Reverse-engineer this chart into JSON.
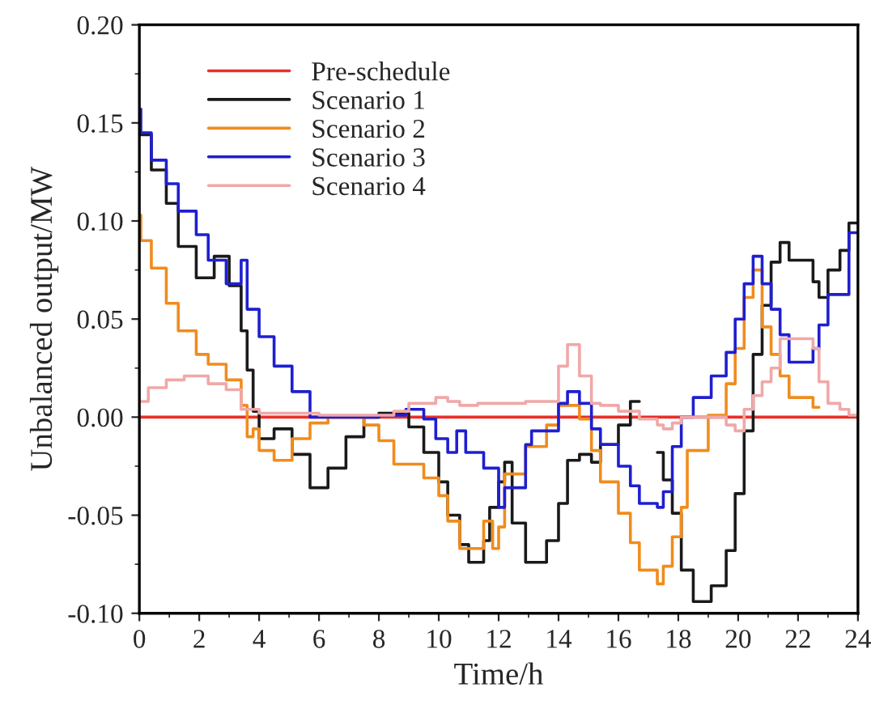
{
  "chart_data": {
    "type": "step",
    "xlabel": "Time/h",
    "ylabel": "Unbalanced output/MW",
    "xlim": [
      0,
      24
    ],
    "ylim": [
      -0.1,
      0.2
    ],
    "xticks": [
      0,
      2,
      4,
      6,
      8,
      10,
      12,
      14,
      16,
      18,
      20,
      22,
      24
    ],
    "yticks": [
      {
        "value": -0.1,
        "label": "-0.10"
      },
      {
        "value": -0.05,
        "label": "-0.05"
      },
      {
        "value": 0,
        "label": "0.00"
      },
      {
        "value": 0.05,
        "label": "0.05"
      },
      {
        "value": 0.1,
        "label": "0.10"
      },
      {
        "value": 0.15,
        "label": "0.15"
      },
      {
        "value": 0.2,
        "label": "0.20"
      }
    ],
    "grid": false,
    "legend": "top left",
    "line_style": "solid",
    "marker": "none",
    "series": [
      {
        "name": "Pre-schedule",
        "color": "#e8302a",
        "x": [
          0,
          24
        ],
        "values": [
          0,
          0
        ]
      },
      {
        "name": "Scenario 1",
        "color": "#1a1a1a",
        "x": [
          0,
          0.4,
          0.9,
          1.3,
          1.9,
          2.5,
          3.0,
          3.4,
          3.6,
          3.8,
          4.0,
          4.5,
          5.1,
          5.7,
          6.3,
          6.9,
          7.5,
          8.0,
          9.0,
          9.5,
          10.0,
          10.3,
          10.7,
          11.0,
          11.5,
          11.7,
          12.0,
          12.2,
          12.45,
          12.9,
          13.6,
          14.0,
          14.3,
          14.7,
          15.1,
          15.4,
          16.0,
          16.4,
          16.7,
          17.3,
          17.5,
          17.8,
          18.1,
          18.5,
          19.1,
          19.6,
          19.9,
          20.2,
          20.5,
          20.8,
          21.1,
          21.4,
          21.7,
          22.5,
          22.7,
          23.0,
          23.4,
          23.7,
          24
        ],
        "values": [
          0.144,
          0.126,
          0.109,
          0.087,
          0.071,
          0.082,
          0.067,
          0.044,
          0.024,
          0.003,
          -0.011,
          -0.006,
          -0.019,
          -0.036,
          -0.026,
          -0.01,
          0.0,
          0.002,
          -0.005,
          -0.018,
          -0.033,
          -0.05,
          -0.065,
          -0.074,
          -0.063,
          -0.046,
          -0.033,
          -0.023,
          -0.054,
          -0.074,
          -0.063,
          -0.044,
          -0.022,
          -0.019,
          -0.023,
          -0.014,
          -0.004,
          0.008,
          null,
          -0.018,
          -0.032,
          -0.049,
          -0.078,
          -0.094,
          -0.086,
          -0.068,
          -0.039,
          -0.007,
          0.032,
          0.057,
          0.079,
          0.089,
          0.08,
          0.069,
          0.061,
          0.075,
          0.085,
          0.099,
          0.099
        ]
      },
      {
        "name": "Scenario 2",
        "color": "#f08c1e",
        "x": [
          0,
          0.05,
          0.4,
          0.9,
          1.3,
          1.9,
          2.3,
          2.9,
          3.4,
          3.6,
          3.8,
          4.0,
          4.5,
          5.1,
          5.7,
          6.3,
          7.5,
          8.0,
          8.5,
          9.5,
          10.0,
          10.3,
          10.7,
          11.5,
          11.8,
          12.0,
          12.2,
          12.9,
          13.6,
          14.0,
          14.7,
          15.1,
          15.4,
          16.0,
          16.4,
          16.7,
          17.3,
          17.5,
          17.8,
          18.1,
          18.3,
          19.0,
          19.6,
          19.9,
          20.2,
          20.5,
          20.8,
          21.1,
          21.4,
          21.7,
          22.5,
          22.7
        ],
        "values": [
          0.103,
          0.09,
          0.076,
          0.058,
          0.044,
          0.032,
          0.027,
          0.019,
          0.006,
          -0.01,
          -0.006,
          -0.017,
          -0.022,
          -0.011,
          -0.003,
          0.0,
          -0.004,
          -0.012,
          -0.024,
          -0.031,
          -0.04,
          -0.053,
          -0.067,
          -0.053,
          -0.067,
          -0.056,
          -0.029,
          -0.015,
          -0.004,
          0.006,
          -0.001,
          -0.017,
          -0.033,
          -0.049,
          -0.064,
          -0.078,
          -0.085,
          -0.076,
          -0.061,
          -0.046,
          -0.017,
          0.001,
          0.017,
          0.035,
          0.061,
          0.075,
          0.046,
          0.032,
          0.021,
          0.01,
          0.005,
          0.005
        ]
      },
      {
        "name": "Scenario 3",
        "color": "#1f1fd0",
        "x": [
          0,
          0.05,
          0.4,
          0.9,
          1.3,
          1.9,
          2.3,
          2.9,
          3.4,
          3.6,
          4.0,
          4.5,
          5.1,
          5.7,
          8.0,
          8.9,
          9.5,
          9.9,
          10.3,
          10.6,
          10.9,
          11.5,
          12.0,
          12.2,
          12.9,
          13.1,
          14.0,
          14.3,
          14.7,
          15.1,
          15.4,
          16.0,
          16.4,
          16.7,
          17.3,
          17.5,
          17.8,
          18.1,
          18.5,
          19.1,
          19.6,
          19.9,
          20.2,
          20.5,
          20.8,
          21.1,
          21.4,
          21.7,
          22.5,
          22.7,
          23.0,
          23.7,
          24
        ],
        "values": [
          0.157,
          0.145,
          0.131,
          0.119,
          0.105,
          0.093,
          0.08,
          0.068,
          0.08,
          0.055,
          0.041,
          0.026,
          0.013,
          0.0,
          0.001,
          0.004,
          -0.001,
          -0.011,
          -0.018,
          -0.007,
          -0.018,
          -0.026,
          -0.046,
          -0.036,
          -0.014,
          -0.007,
          0.007,
          0.013,
          0.007,
          -0.006,
          -0.014,
          -0.025,
          -0.035,
          -0.044,
          -0.046,
          -0.038,
          -0.015,
          0.0,
          0.01,
          0.021,
          0.033,
          0.05,
          0.068,
          0.082,
          0.068,
          0.055,
          0.042,
          0.028,
          0.035,
          0.047,
          0.0625,
          0.094,
          0.094
        ]
      },
      {
        "name": "Scenario 4",
        "color": "#f0a8a8",
        "x": [
          0,
          0.3,
          0.9,
          1.5,
          2.3,
          2.9,
          3.4,
          4.0,
          6.0,
          8.5,
          9.0,
          9.9,
          10.3,
          10.7,
          11.3,
          12.0,
          12.9,
          14.0,
          14.3,
          14.7,
          15.1,
          15.4,
          16.0,
          16.7,
          17.3,
          17.5,
          17.8,
          18.1,
          19.6,
          19.9,
          20.2,
          20.5,
          20.8,
          21.1,
          21.4,
          22.5,
          22.7,
          23.0,
          23.4,
          23.7,
          24
        ],
        "values": [
          0.008,
          0.015,
          0.019,
          0.021,
          0.017,
          0.014,
          0.004,
          0.002,
          0.001,
          0.003,
          0.007,
          0.01,
          0.008,
          0.006,
          0.007,
          0.007,
          0.008,
          0.026,
          0.037,
          0.021,
          0.007,
          0.006,
          0.003,
          -0.001,
          -0.004,
          -0.006,
          -0.003,
          0.0,
          -0.004,
          -0.007,
          0.004,
          0.011,
          0.018,
          0.025,
          0.04,
          0.035,
          0.018,
          0.007,
          0.004,
          0.001,
          0.001
        ]
      }
    ]
  }
}
